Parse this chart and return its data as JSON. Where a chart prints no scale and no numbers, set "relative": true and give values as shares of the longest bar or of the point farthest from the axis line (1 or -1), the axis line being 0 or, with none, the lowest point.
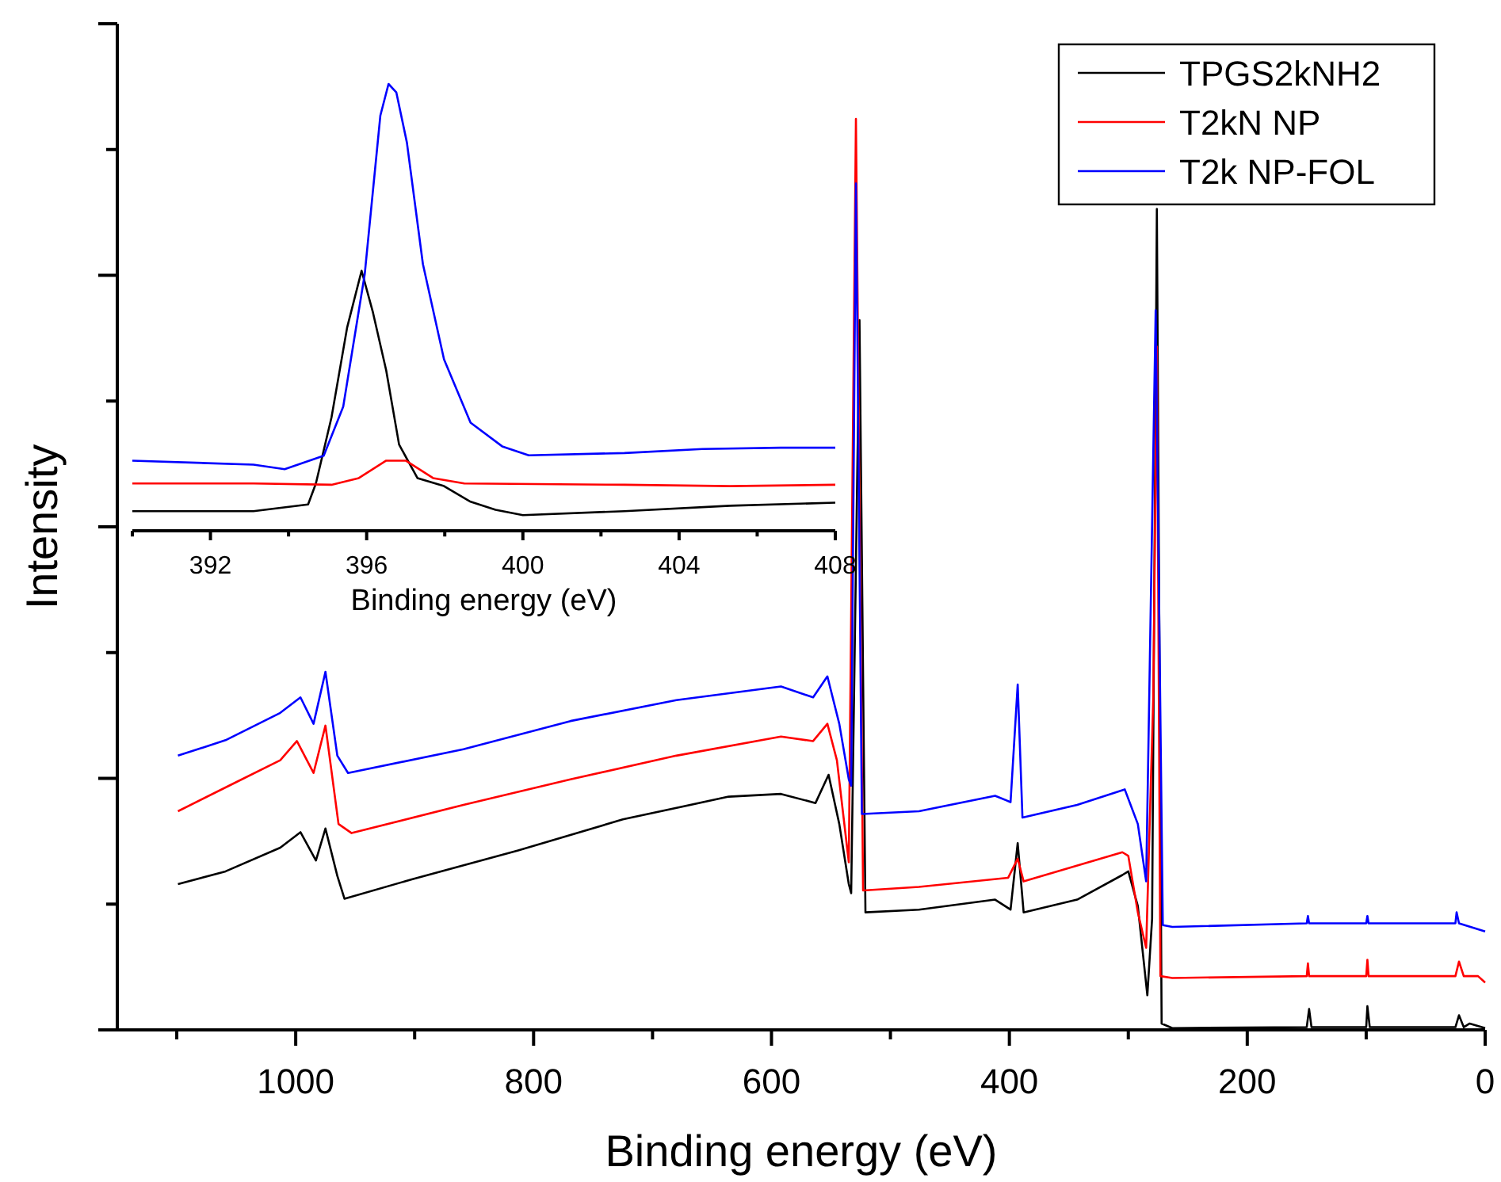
{
  "chart_data": [
    {
      "type": "line",
      "xlabel": "Binding energy (eV)",
      "ylabel": "Intensity",
      "relative": true,
      "xlim": [
        1150,
        0
      ],
      "xticks": [
        {
          "value": 1100,
          "label": null
        },
        1000,
        {
          "value": 900,
          "label": null
        },
        800,
        {
          "value": 700,
          "label": null
        },
        600,
        {
          "value": 500,
          "label": null
        },
        400,
        {
          "value": 300,
          "label": null
        },
        200,
        {
          "value": 100,
          "label": null
        },
        0
      ],
      "legend": "top right",
      "grid": false,
      "series": [
        {
          "name": "TPGS2kNH2",
          "color": "#000000",
          "x": [
            1099,
            1059,
            1013,
            996,
            983,
            975,
            965,
            959,
            903,
            813,
            725,
            636,
            592,
            563,
            552,
            543,
            535,
            533,
            526,
            521,
            476,
            412,
            399,
            393,
            388,
            343,
            305,
            300,
            292,
            284,
            280,
            276,
            272,
            263,
            150,
            148,
            146,
            100,
            99,
            97,
            25,
            22,
            18,
            13,
            0
          ],
          "values": [
            0.16,
            0.174,
            0.2,
            0.217,
            0.186,
            0.221,
            0.169,
            0.144,
            0.165,
            0.197,
            0.231,
            0.256,
            0.259,
            0.249,
            0.28,
            0.226,
            0.16,
            0.15,
            0.779,
            0.129,
            0.132,
            0.143,
            0.132,
            0.205,
            0.129,
            0.143,
            0.17,
            0.174,
            0.136,
            0.038,
            0.122,
            0.901,
            0.007,
            0.002,
            0.003,
            0.023,
            0.003,
            0.003,
            0.026,
            0.003,
            0.003,
            0.016,
            0.003,
            0.007,
            0.002
          ]
        },
        {
          "name": "T2kN NP",
          "color": "#ff0000",
          "x": [
            1099,
            1053,
            1013,
            999,
            985,
            975,
            964,
            953,
            859,
            769,
            680,
            592,
            565,
            553,
            545,
            535,
            529,
            523,
            476,
            401,
            393,
            388,
            305,
            300,
            292,
            285,
            279,
            276,
            273,
            263,
            150,
            149,
            148,
            100,
            99,
            98,
            25,
            22,
            18,
            6,
            0
          ],
          "values": [
            0.24,
            0.27,
            0.296,
            0.317,
            0.282,
            0.334,
            0.226,
            0.216,
            0.247,
            0.275,
            0.301,
            0.322,
            0.317,
            0.336,
            0.296,
            0.184,
            1.0,
            0.153,
            0.157,
            0.167,
            0.188,
            0.163,
            0.195,
            0.191,
            0.129,
            0.09,
            0.365,
            0.75,
            0.059,
            0.057,
            0.059,
            0.073,
            0.059,
            0.059,
            0.077,
            0.059,
            0.059,
            0.075,
            0.059,
            0.059,
            0.052
          ]
        },
        {
          "name": "T2k NP-FOL",
          "color": "#0000ff",
          "x": [
            1099,
            1059,
            1013,
            996,
            985,
            975,
            965,
            956,
            859,
            769,
            680,
            592,
            565,
            553,
            543,
            535,
            533,
            529,
            524,
            476,
            412,
            399,
            393,
            389,
            343,
            303,
            292,
            285,
            277,
            271,
            263,
            150,
            149,
            148,
            100,
            99,
            98,
            25,
            24,
            22,
            0
          ],
          "values": [
            0.301,
            0.318,
            0.348,
            0.365,
            0.336,
            0.393,
            0.301,
            0.282,
            0.308,
            0.339,
            0.362,
            0.377,
            0.365,
            0.388,
            0.336,
            0.275,
            0.268,
            0.929,
            0.237,
            0.24,
            0.257,
            0.25,
            0.379,
            0.233,
            0.247,
            0.264,
            0.226,
            0.163,
            0.79,
            0.115,
            0.113,
            0.117,
            0.125,
            0.117,
            0.117,
            0.125,
            0.117,
            0.117,
            0.129,
            0.117,
            0.108
          ]
        }
      ]
    },
    {
      "type": "line",
      "xlabel": "Binding energy (eV)",
      "relative": true,
      "xlim": [
        390,
        408
      ],
      "xticks": [
        {
          "value": 390,
          "label": null
        },
        392,
        {
          "value": 394,
          "label": null
        },
        396,
        {
          "value": 398,
          "label": null
        },
        400,
        {
          "value": 402,
          "label": null
        },
        404,
        {
          "value": 406,
          "label": null
        },
        408
      ],
      "grid": false,
      "series": [
        {
          "color": "#000000",
          "x": [
            390,
            393.1,
            394.5,
            394.7,
            395.1,
            395.5,
            395.87,
            396.16,
            396.5,
            396.83,
            397.3,
            397.98,
            398.66,
            399.3,
            400,
            402.6,
            405.3,
            408
          ],
          "values": [
            0.044,
            0.044,
            0.059,
            0.106,
            0.254,
            0.455,
            0.582,
            0.489,
            0.359,
            0.193,
            0.118,
            0.1,
            0.065,
            0.047,
            0.035,
            0.044,
            0.056,
            0.063
          ]
        },
        {
          "color": "#ff0000",
          "x": [
            390,
            393.1,
            395.1,
            395.8,
            396.5,
            397,
            397.7,
            398.5,
            402.6,
            405.3,
            408
          ],
          "values": [
            0.106,
            0.106,
            0.103,
            0.118,
            0.157,
            0.157,
            0.118,
            0.106,
            0.103,
            0.1,
            0.103
          ]
        },
        {
          "color": "#0000ff",
          "x": [
            390,
            393.1,
            393.9,
            394.9,
            395.4,
            395.95,
            396.35,
            396.56,
            396.76,
            397.03,
            397.44,
            397.98,
            398.66,
            399.47,
            400.15,
            402.6,
            404.6,
            406.6,
            408
          ],
          "values": [
            0.157,
            0.148,
            0.138,
            0.168,
            0.278,
            0.574,
            0.929,
            1.0,
            0.981,
            0.869,
            0.597,
            0.384,
            0.242,
            0.189,
            0.169,
            0.174,
            0.183,
            0.186,
            0.186
          ]
        }
      ]
    }
  ]
}
